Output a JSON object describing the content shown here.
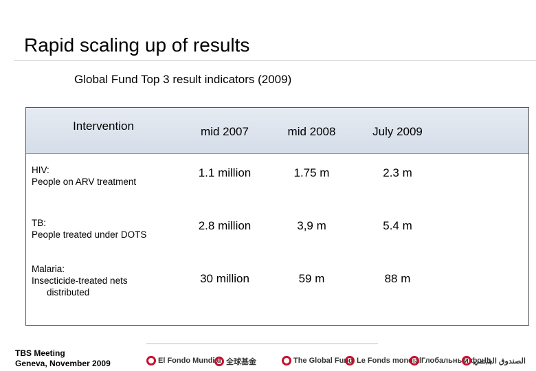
{
  "title": "Rapid scaling up of results",
  "subtitle": "Global Fund Top 3 result indicators (2009)",
  "table": {
    "header": [
      "Intervention",
      "mid 2007",
      "mid 2008",
      "July 2009"
    ],
    "rows": [
      {
        "label": [
          "HIV:",
          "People on ARV treatment"
        ],
        "cells": [
          "1.1 million",
          "1.75 m",
          "2.3 m"
        ]
      },
      {
        "label": [
          "TB:",
          "People treated under DOTS"
        ],
        "cells": [
          "2.8 million",
          "3,9 m",
          "5.4 m"
        ]
      },
      {
        "label": [
          "Malaria:",
          "Insecticide-treated nets",
          "distributed"
        ],
        "cells": [
          "30 million",
          "59 m",
          "88 m"
        ]
      }
    ]
  },
  "footer": {
    "lines": [
      "TBS Meeting",
      "Geneva, November 2009"
    ],
    "logos": [
      "El Fondo Mundial",
      "全球基金",
      "The Global Fund",
      "Le Fonds mondial",
      "Глобальный фонд",
      "الصندوق العالمي"
    ]
  }
}
